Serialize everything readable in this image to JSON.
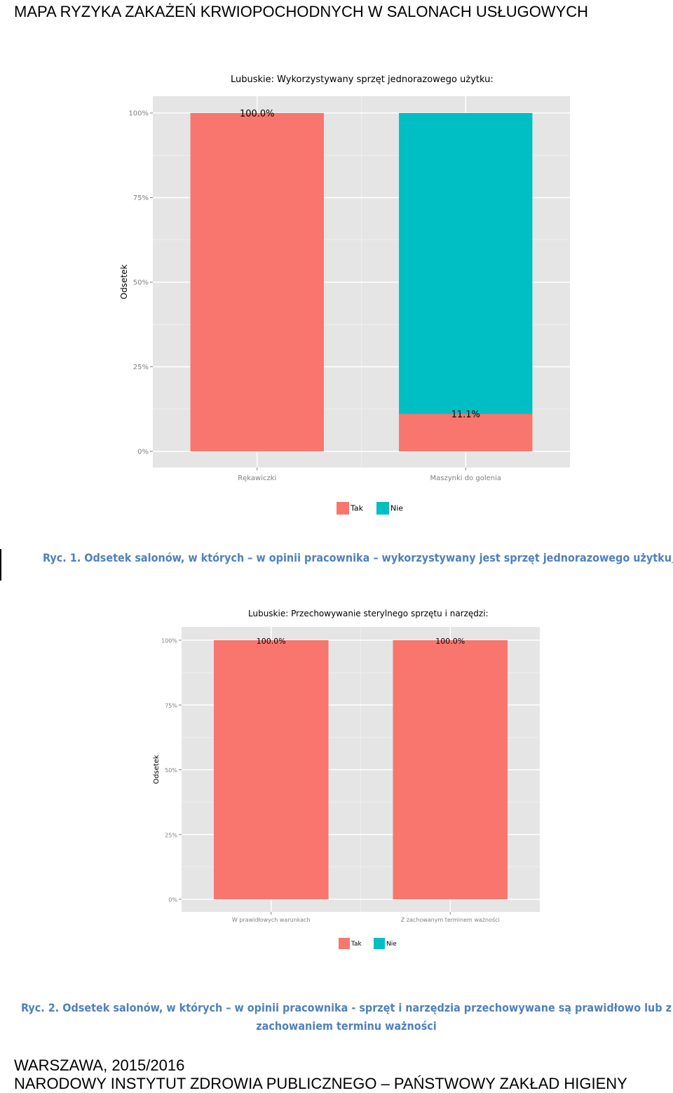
{
  "header": {
    "title": "MAPA RYZYKA ZAKAŻEŃ KRWIOPOCHODNYCH W SALONACH USŁUGOWYCH"
  },
  "chart_data": [
    {
      "type": "bar",
      "stacked": true,
      "title": "Lubuskie: Wykorzystywany sprzęt jednorazowego użytku:",
      "ylabel": "Odsetek",
      "xlabel": "",
      "ylim": [
        0,
        100
      ],
      "yticks": [
        "0%",
        "25%",
        "50%",
        "75%",
        "100%"
      ],
      "categories": [
        "Rękawiczki",
        "Maszynki do golenia"
      ],
      "series": [
        {
          "name": "Tak",
          "color": "#f8766d",
          "values": [
            100.0,
            11.1
          ]
        },
        {
          "name": "Nie",
          "color": "#00bfc4",
          "values": [
            0.0,
            88.9
          ]
        }
      ],
      "data_labels": [
        "100.0%",
        "11.1%"
      ],
      "legend": "bottom",
      "grid": true
    },
    {
      "type": "bar",
      "stacked": true,
      "title": "Lubuskie: Przechowywanie sterylnego sprzętu i narzędzi:",
      "ylabel": "Odsetek",
      "xlabel": "",
      "ylim": [
        0,
        100
      ],
      "yticks": [
        "0%",
        "25%",
        "50%",
        "75%",
        "100%"
      ],
      "categories": [
        "W prawidłowych warunkach",
        "Z zachowanym terminem ważności"
      ],
      "series": [
        {
          "name": "Tak",
          "color": "#f8766d",
          "values": [
            100.0,
            100.0
          ]
        },
        {
          "name": "Nie",
          "color": "#00bfc4",
          "values": [
            0.0,
            0.0
          ]
        }
      ],
      "data_labels": [
        "100.0%",
        "100.0%"
      ],
      "legend": "bottom",
      "grid": true
    }
  ],
  "captions": {
    "fig1": "Ryc. 1. Odsetek salonów, w których – w opinii pracownika – wykorzystywany jest sprzęt jednorazowego użytku",
    "fig2": "Ryc. 2. Odsetek salonów, w których – w opinii pracownika - sprzęt i narzędzia przechowywane są prawidłowo lub z zachowaniem terminu ważności"
  },
  "footer": {
    "line1": "WARSZAWA, 2015/2016",
    "line2": "NARODOWY INSTYTUT ZDROWIA PUBLICZNEGO – PAŃSTWOWY ZAKŁAD HIGIENY"
  }
}
